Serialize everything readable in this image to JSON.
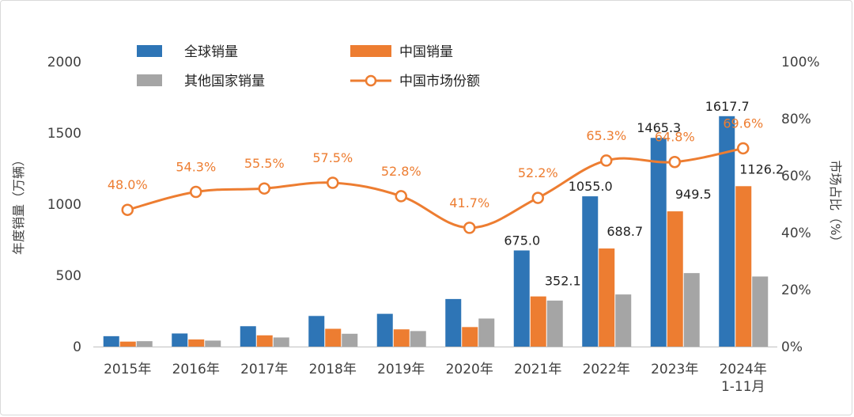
{
  "chart_data": {
    "type": "bar",
    "categories": [
      "2015年",
      "2016年",
      "2017年",
      "2018年",
      "2019年",
      "2020年",
      "2021年",
      "2022年",
      "2023年",
      "2024年\n1-11月"
    ],
    "series": [
      {
        "name": "全球销量",
        "kind": "bar",
        "axis": "left",
        "color": "#2E75B6",
        "values": [
          73,
          92,
          143,
          215,
          230,
          334,
          675.0,
          1055.0,
          1465.3,
          1617.7
        ],
        "labels": [
          "",
          "",
          "",
          "",
          "",
          "",
          "675.0",
          "1055.0",
          "1465.3",
          "1617.7"
        ]
      },
      {
        "name": "中国销量",
        "kind": "bar",
        "axis": "left",
        "color": "#ED7D31",
        "values": [
          35,
          50,
          79,
          125,
          121,
          137,
          352.1,
          688.7,
          949.5,
          1126.2
        ],
        "labels": [
          "",
          "",
          "",
          "",
          "",
          "",
          "352.1",
          "688.7",
          "949.5",
          "1126.2"
        ]
      },
      {
        "name": "其他国家销量",
        "kind": "bar",
        "axis": "left",
        "color": "#A5A5A5",
        "values": [
          38,
          42,
          64,
          90,
          109,
          197,
          323,
          366,
          516,
          492
        ],
        "labels": [
          "",
          "",
          "",
          "",
          "",
          "",
          "",
          "",
          "",
          ""
        ]
      },
      {
        "name": "中国市场份额",
        "kind": "line",
        "axis": "right",
        "color": "#ED7D31",
        "values": [
          48.0,
          54.3,
          55.5,
          57.5,
          52.8,
          41.7,
          52.2,
          65.3,
          64.8,
          69.6
        ],
        "labels": [
          "48.0%",
          "54.3%",
          "55.5%",
          "57.5%",
          "52.8%",
          "41.7%",
          "52.2%",
          "65.3%",
          "64.8%",
          "69.6%"
        ]
      }
    ],
    "ylabel": "年度销量（万辆）",
    "y2label": "市场占比（%）",
    "ylim": [
      0,
      2000
    ],
    "y2lim": [
      0,
      100
    ],
    "yticks": [
      "0",
      "500",
      "1000",
      "1500",
      "2000"
    ],
    "y2ticks": [
      "0%",
      "20%",
      "40%",
      "60%",
      "80%",
      "100%"
    ],
    "grid": false,
    "legend": "top"
  }
}
